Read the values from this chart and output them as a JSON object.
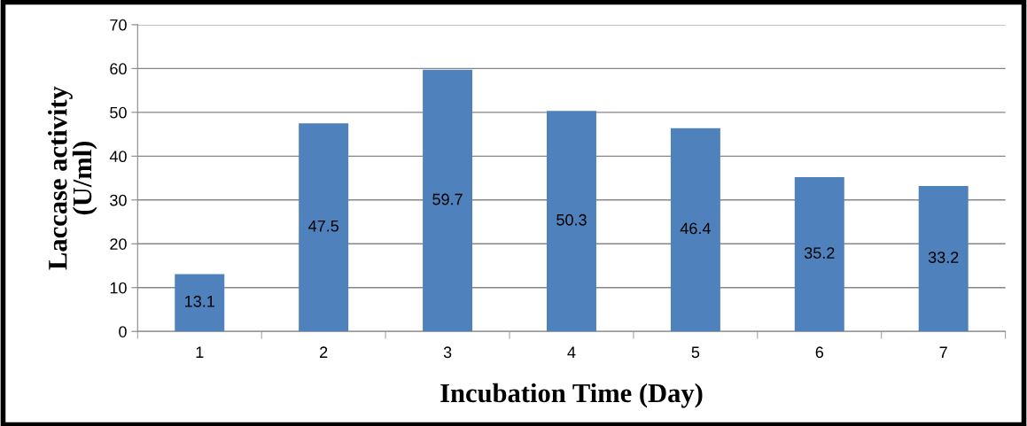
{
  "chart_data": {
    "type": "bar",
    "xlabel": "Incubation Time (Day)",
    "ylabel": "Laccase activity\n(U/ml)",
    "categories": [
      "1",
      "2",
      "3",
      "4",
      "5",
      "6",
      "7"
    ],
    "values": [
      13.1,
      47.5,
      59.7,
      50.3,
      46.4,
      35.2,
      33.2
    ],
    "color": "#4f81bd",
    "ylim": [
      0,
      70
    ],
    "yticks": [
      0,
      10,
      20,
      30,
      40,
      50,
      60,
      70
    ],
    "grid": "y",
    "data_labels": true
  }
}
